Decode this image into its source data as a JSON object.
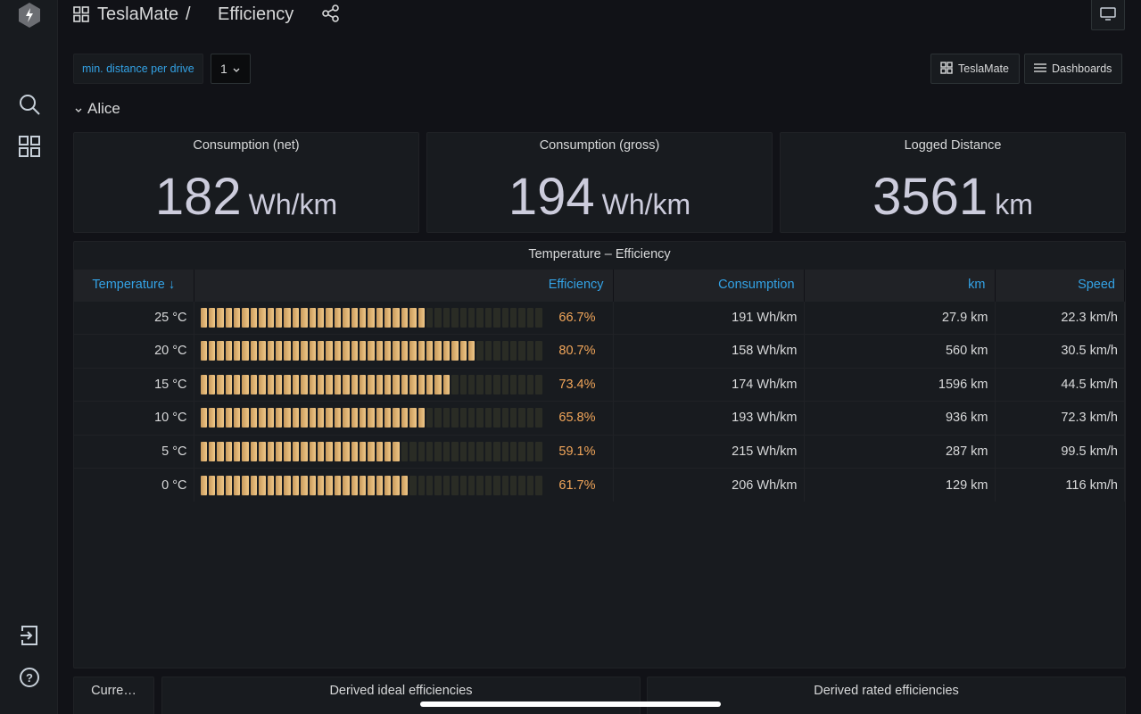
{
  "breadcrumb": {
    "folder": "TeslaMate",
    "separator": "/",
    "title": "Efficiency"
  },
  "variables": {
    "label": "min. distance per drive",
    "value": "1"
  },
  "links": {
    "teslamate": "TeslaMate",
    "dashboards": "Dashboards"
  },
  "row": {
    "title": "Alice"
  },
  "stats": [
    {
      "title": "Consumption (net)",
      "value": "182",
      "unit": "Wh/km"
    },
    {
      "title": "Consumption (gross)",
      "value": "194",
      "unit": "Wh/km"
    },
    {
      "title": "Logged Distance",
      "value": "3561",
      "unit": "km"
    }
  ],
  "table": {
    "title": "Temperature – Efficiency",
    "headers": {
      "temperature": "Temperature",
      "efficiency": "Efficiency",
      "consumption": "Consumption",
      "km": "km",
      "speed": "Speed"
    },
    "rows": [
      {
        "temperature": "25 °C",
        "efficiency": "66.7%",
        "efficiency_fraction": 0.667,
        "consumption": "191 Wh/km",
        "km": "27.9 km",
        "speed": "22.3 km/h"
      },
      {
        "temperature": "20 °C",
        "efficiency": "80.7%",
        "efficiency_fraction": 0.807,
        "consumption": "158 Wh/km",
        "km": "560 km",
        "speed": "30.5 km/h"
      },
      {
        "temperature": "15 °C",
        "efficiency": "73.4%",
        "efficiency_fraction": 0.734,
        "consumption": "174 Wh/km",
        "km": "1596 km",
        "speed": "44.5 km/h"
      },
      {
        "temperature": "10 °C",
        "efficiency": "65.8%",
        "efficiency_fraction": 0.658,
        "consumption": "193 Wh/km",
        "km": "936 km",
        "speed": "72.3 km/h"
      },
      {
        "temperature": "5 °C",
        "efficiency": "59.1%",
        "efficiency_fraction": 0.591,
        "consumption": "215 Wh/km",
        "km": "287 km",
        "speed": "99.5 km/h"
      },
      {
        "temperature": "0 °C",
        "efficiency": "61.7%",
        "efficiency_fraction": 0.617,
        "consumption": "206 Wh/km",
        "km": "129 km",
        "speed": "116 km/h"
      }
    ]
  },
  "bottom_panels": {
    "current": "Curre…",
    "ideal": "Derived ideal efficiencies",
    "rated": "Derived rated efficiencies"
  },
  "colors": {
    "accent": "#33a2e5",
    "gauge": "#f0c888",
    "efficiency_text": "#f2a65a"
  }
}
